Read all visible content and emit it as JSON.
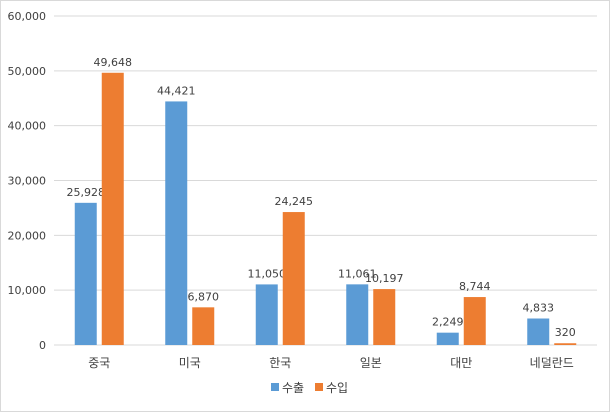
{
  "chart_data": {
    "type": "bar",
    "categories": [
      "중국",
      "미국",
      "한국",
      "일본",
      "대만",
      "네덜란드"
    ],
    "series": [
      {
        "name": "수출",
        "color": "#5b9bd5",
        "values": [
          25928,
          44421,
          11050,
          11061,
          2249,
          4833
        ]
      },
      {
        "name": "수입",
        "color": "#ed7d31",
        "values": [
          49648,
          6870,
          24245,
          10197,
          8744,
          320
        ]
      }
    ],
    "ylim": [
      0,
      60000
    ],
    "yticks": [
      0,
      10000,
      20000,
      30000,
      40000,
      50000,
      60000
    ],
    "grid": true,
    "legend_position": "bottom",
    "title": "",
    "xlabel": "",
    "ylabel": ""
  }
}
